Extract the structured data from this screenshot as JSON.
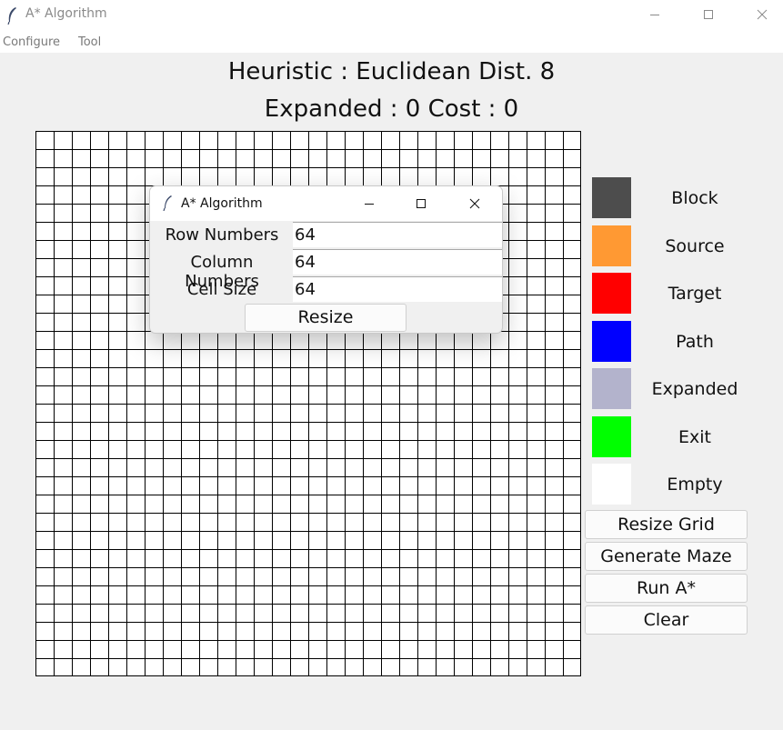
{
  "window": {
    "title": "A* Algorithm"
  },
  "menu": {
    "items": [
      "Configure",
      "Tool"
    ]
  },
  "status": {
    "heuristic_line": "Heuristic : Euclidean Dist. 8",
    "stats_line": "Expanded : 0 Cost : 0"
  },
  "grid": {
    "rows": 30,
    "cols": 30,
    "line_color": "#000000",
    "cell_color": "#ffffff"
  },
  "legend": [
    {
      "label": "Block",
      "color": "#4d4d4d"
    },
    {
      "label": "Source",
      "color": "#ff9933"
    },
    {
      "label": "Target",
      "color": "#ff0000"
    },
    {
      "label": "Path",
      "color": "#0000ff"
    },
    {
      "label": "Expanded",
      "color": "#b3b3cc"
    },
    {
      "label": "Exit",
      "color": "#00ff00"
    },
    {
      "label": "Empty",
      "color": "#ffffff"
    }
  ],
  "buttons": {
    "resize_grid": "Resize Grid",
    "generate_maze": "Generate Maze",
    "run": "Run A*",
    "clear": "Clear"
  },
  "dialog": {
    "title": "A* Algorithm",
    "fields": [
      {
        "label": "Row Numbers",
        "value": "64"
      },
      {
        "label": "Column Numbers",
        "value": "64"
      },
      {
        "label": "Cell Size",
        "value": "64"
      }
    ],
    "submit": "Resize"
  },
  "icons": {
    "app": "feather-icon",
    "minimize": "minimize-icon",
    "maximize": "maximize-icon",
    "close": "close-icon"
  }
}
